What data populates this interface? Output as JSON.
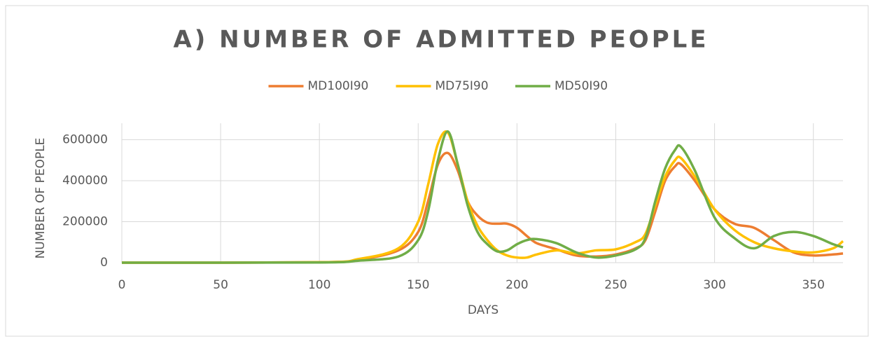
{
  "chart_data": {
    "type": "line",
    "title": "A) NUMBER OF ADMITTED PEOPLE",
    "x_label": "DAYS",
    "y_label": "NUMBER OF PEOPLE",
    "x": [
      0,
      100,
      120,
      140,
      150,
      155,
      160,
      165,
      170,
      175,
      180,
      185,
      190,
      195,
      200,
      205,
      210,
      220,
      230,
      240,
      250,
      260,
      265,
      270,
      275,
      280,
      283,
      290,
      300,
      310,
      320,
      330,
      340,
      350,
      360,
      365
    ],
    "series": [
      {
        "name": "MD100I90",
        "color": "#ed7d31",
        "values": [
          0,
          2000,
          15000,
          60000,
          150000,
          300000,
          480000,
          535000,
          450000,
          300000,
          230000,
          195000,
          190000,
          190000,
          170000,
          130000,
          95000,
          65000,
          35000,
          30000,
          40000,
          70000,
          110000,
          250000,
          400000,
          470000,
          480000,
          400000,
          260000,
          190000,
          170000,
          110000,
          50000,
          35000,
          40000,
          45000
        ]
      },
      {
        "name": "MD75I90",
        "color": "#ffc000",
        "values": [
          0,
          2000,
          18000,
          70000,
          200000,
          380000,
          580000,
          635000,
          480000,
          300000,
          180000,
          110000,
          60000,
          35000,
          25000,
          25000,
          40000,
          60000,
          45000,
          60000,
          65000,
          100000,
          140000,
          280000,
          420000,
          500000,
          510000,
          420000,
          260000,
          160000,
          100000,
          70000,
          55000,
          50000,
          70000,
          105000
        ]
      },
      {
        "name": "MD50I90",
        "color": "#70ad47",
        "values": [
          0,
          1000,
          10000,
          30000,
          110000,
          250000,
          500000,
          640000,
          480000,
          280000,
          150000,
          90000,
          55000,
          60000,
          90000,
          110000,
          115000,
          95000,
          50000,
          25000,
          35000,
          65000,
          120000,
          300000,
          460000,
          550000,
          565000,
          450000,
          220000,
          120000,
          70000,
          130000,
          150000,
          130000,
          90000,
          75000
        ]
      }
    ],
    "xlim": [
      0,
      365
    ],
    "xticks": [
      0,
      50,
      100,
      150,
      200,
      250,
      300,
      350
    ],
    "ylim": [
      0,
      680000
    ],
    "yticks": [
      0,
      200000,
      400000,
      600000
    ],
    "grid": true,
    "legend": "top"
  }
}
